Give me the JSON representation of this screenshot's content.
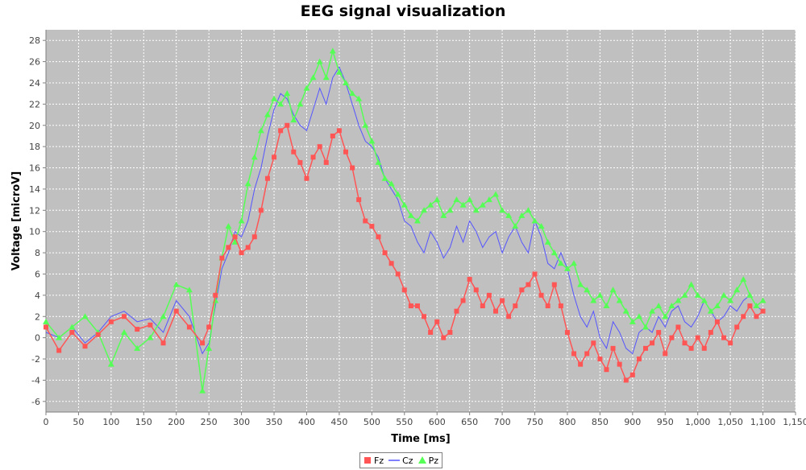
{
  "chart_data": {
    "type": "line",
    "title": "EEG signal visualization",
    "xlabel": "Time [ms]",
    "ylabel": "Voltage  [microV]",
    "xlim": [
      0,
      1150
    ],
    "ylim": [
      -7,
      29
    ],
    "x_ticks": [
      "0",
      "50",
      "100",
      "150",
      "200",
      "250",
      "300",
      "350",
      "400",
      "450",
      "500",
      "550",
      "600",
      "650",
      "700",
      "750",
      "800",
      "850",
      "900",
      "950",
      "1,000",
      "1,050",
      "1,100",
      "1,150"
    ],
    "y_ticks": [
      "-6",
      "-4",
      "-2",
      "0",
      "2",
      "4",
      "6",
      "8",
      "10",
      "12",
      "14",
      "16",
      "18",
      "20",
      "22",
      "24",
      "26",
      "28"
    ],
    "grid": true,
    "background": "#c0c0c0",
    "legend_position": "bottom",
    "series": [
      {
        "name": "Fz",
        "color": "#ff5555",
        "marker": "square",
        "x": [
          0,
          20,
          40,
          60,
          80,
          100,
          120,
          140,
          160,
          180,
          200,
          220,
          240,
          250,
          260,
          270,
          280,
          290,
          300,
          310,
          320,
          330,
          340,
          350,
          360,
          370,
          380,
          390,
          400,
          410,
          420,
          430,
          440,
          450,
          460,
          470,
          480,
          490,
          500,
          510,
          520,
          530,
          540,
          550,
          560,
          570,
          580,
          590,
          600,
          610,
          620,
          630,
          640,
          650,
          660,
          670,
          680,
          690,
          700,
          710,
          720,
          730,
          740,
          750,
          760,
          770,
          780,
          790,
          800,
          810,
          820,
          830,
          840,
          850,
          860,
          870,
          880,
          890,
          900,
          910,
          920,
          930,
          940,
          950,
          960,
          970,
          980,
          990,
          1000,
          1010,
          1020,
          1030,
          1040,
          1050,
          1060,
          1070,
          1080,
          1090,
          1100
        ],
        "y": [
          1.0,
          -1.2,
          0.5,
          -0.8,
          0.3,
          1.5,
          2.0,
          0.8,
          1.2,
          -0.5,
          2.5,
          1.0,
          -0.5,
          1.0,
          4.0,
          7.5,
          8.5,
          9.5,
          8.0,
          8.5,
          9.5,
          12.0,
          15.0,
          17.0,
          19.5,
          20.0,
          17.5,
          16.5,
          15.0,
          17.0,
          18.0,
          16.5,
          19.0,
          19.5,
          17.5,
          16.0,
          13.0,
          11.0,
          10.5,
          9.5,
          8.0,
          7.0,
          6.0,
          4.5,
          3.0,
          3.0,
          2.0,
          0.5,
          1.5,
          0.0,
          0.5,
          2.5,
          3.5,
          5.5,
          4.5,
          3.0,
          4.0,
          2.5,
          3.5,
          2.0,
          3.0,
          4.5,
          5.0,
          6.0,
          4.0,
          3.0,
          5.0,
          3.0,
          0.5,
          -1.5,
          -2.5,
          -1.5,
          -0.5,
          -2.0,
          -3.0,
          -1.0,
          -2.5,
          -4.0,
          -3.5,
          -2.0,
          -1.0,
          -0.5,
          0.5,
          -1.5,
          0.0,
          1.0,
          -0.5,
          -1.0,
          0.0,
          -1.0,
          0.5,
          1.5,
          0.0,
          -0.5,
          1.0,
          2.0,
          3.0,
          2.0,
          2.5
        ]
      },
      {
        "name": "Cz",
        "color": "#5555ff",
        "marker": "none",
        "x": [
          0,
          20,
          40,
          60,
          80,
          100,
          120,
          140,
          160,
          180,
          200,
          220,
          240,
          250,
          260,
          270,
          280,
          290,
          300,
          310,
          320,
          330,
          340,
          350,
          360,
          370,
          380,
          390,
          400,
          410,
          420,
          430,
          440,
          450,
          460,
          470,
          480,
          490,
          500,
          510,
          520,
          530,
          540,
          550,
          560,
          570,
          580,
          590,
          600,
          610,
          620,
          630,
          640,
          650,
          660,
          670,
          680,
          690,
          700,
          710,
          720,
          730,
          740,
          750,
          760,
          770,
          780,
          790,
          800,
          810,
          820,
          830,
          840,
          850,
          860,
          870,
          880,
          890,
          900,
          910,
          920,
          930,
          940,
          950,
          960,
          970,
          980,
          990,
          1000,
          1010,
          1020,
          1030,
          1040,
          1050,
          1060,
          1070,
          1080,
          1090,
          1100
        ],
        "y": [
          0.5,
          0.0,
          1.0,
          -0.5,
          0.5,
          2.0,
          2.5,
          1.5,
          1.8,
          0.5,
          3.5,
          2.0,
          -1.5,
          -0.5,
          3.0,
          6.5,
          8.0,
          10.0,
          9.5,
          11.0,
          14.0,
          16.0,
          19.0,
          21.5,
          23.0,
          22.5,
          21.0,
          20.0,
          19.5,
          21.5,
          23.5,
          22.0,
          24.5,
          25.5,
          24.0,
          22.0,
          20.0,
          18.5,
          18.0,
          17.0,
          15.0,
          14.0,
          13.0,
          11.0,
          10.5,
          9.0,
          8.0,
          10.0,
          9.0,
          7.5,
          8.5,
          10.5,
          9.0,
          11.0,
          10.0,
          8.5,
          9.5,
          10.0,
          8.0,
          9.5,
          10.5,
          9.0,
          8.0,
          11.0,
          9.5,
          7.0,
          6.5,
          8.0,
          6.5,
          4.0,
          2.0,
          1.0,
          2.5,
          0.0,
          -1.0,
          1.5,
          0.5,
          -1.0,
          -1.5,
          0.5,
          1.0,
          0.5,
          2.0,
          1.0,
          2.5,
          3.0,
          1.5,
          1.0,
          2.0,
          3.5,
          2.5,
          1.5,
          2.0,
          3.0,
          2.5,
          3.5,
          4.0,
          3.0,
          2.5
        ]
      },
      {
        "name": "Pz",
        "color": "#55ff55",
        "marker": "triangle",
        "x": [
          0,
          20,
          40,
          60,
          80,
          100,
          120,
          140,
          160,
          180,
          200,
          220,
          240,
          250,
          260,
          270,
          280,
          290,
          300,
          310,
          320,
          330,
          340,
          350,
          360,
          370,
          380,
          390,
          400,
          410,
          420,
          430,
          440,
          450,
          460,
          470,
          480,
          490,
          500,
          510,
          520,
          530,
          540,
          550,
          560,
          570,
          580,
          590,
          600,
          610,
          620,
          630,
          640,
          650,
          660,
          670,
          680,
          690,
          700,
          710,
          720,
          730,
          740,
          750,
          760,
          770,
          780,
          790,
          800,
          810,
          820,
          830,
          840,
          850,
          860,
          870,
          880,
          890,
          900,
          910,
          920,
          930,
          940,
          950,
          960,
          970,
          980,
          990,
          1000,
          1010,
          1020,
          1030,
          1040,
          1050,
          1060,
          1070,
          1080,
          1090,
          1100
        ],
        "y": [
          1.5,
          0.0,
          1.0,
          2.0,
          0.5,
          -2.5,
          0.5,
          -1.0,
          0.0,
          2.0,
          5.0,
          4.5,
          -5.0,
          -1.0,
          3.5,
          7.5,
          10.5,
          9.0,
          11.0,
          14.5,
          17.0,
          19.5,
          21.0,
          22.5,
          22.0,
          23.0,
          20.5,
          22.0,
          23.5,
          24.5,
          26.0,
          24.5,
          27.0,
          25.0,
          24.0,
          23.0,
          22.5,
          20.0,
          18.5,
          16.5,
          15.0,
          14.5,
          13.5,
          12.5,
          11.5,
          11.0,
          12.0,
          12.5,
          13.0,
          11.5,
          12.0,
          13.0,
          12.5,
          13.0,
          12.0,
          12.5,
          13.0,
          13.5,
          12.0,
          11.5,
          10.5,
          11.5,
          12.0,
          11.0,
          10.5,
          9.0,
          8.0,
          7.0,
          6.5,
          7.0,
          5.0,
          4.5,
          3.5,
          4.0,
          3.0,
          4.5,
          3.5,
          2.5,
          1.5,
          2.0,
          1.0,
          2.5,
          3.0,
          2.0,
          3.0,
          3.5,
          4.0,
          5.0,
          4.0,
          3.5,
          2.5,
          3.0,
          4.0,
          3.5,
          4.5,
          5.5,
          4.0,
          3.0,
          3.5
        ]
      }
    ]
  }
}
